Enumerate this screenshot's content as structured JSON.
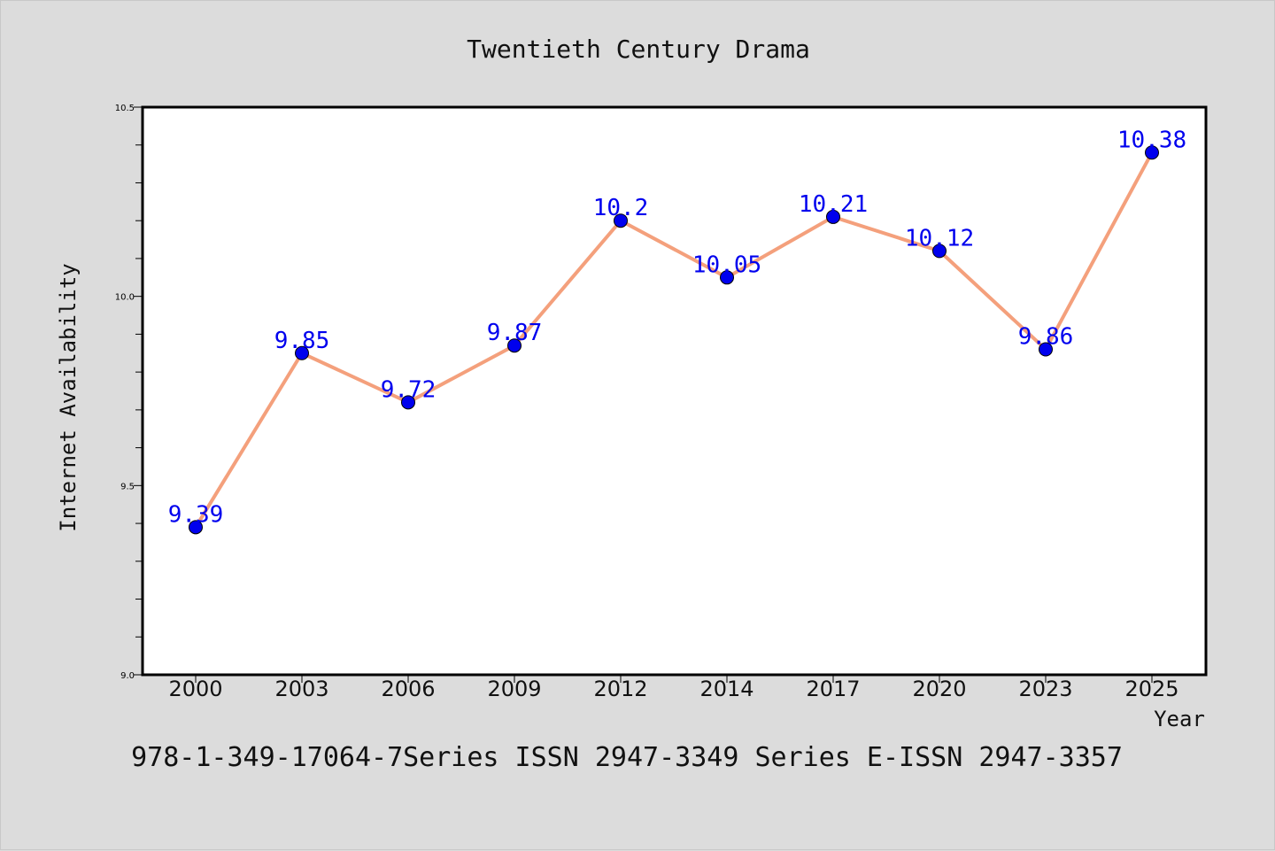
{
  "chart_data": {
    "type": "line",
    "title": "Twentieth Century Drama",
    "xlabel": "Year",
    "ylabel": "Internet Availability",
    "categories": [
      "2000",
      "2003",
      "2006",
      "2009",
      "2012",
      "2014",
      "2017",
      "2020",
      "2023",
      "2025"
    ],
    "series": [
      {
        "values": [
          9.39,
          9.85,
          9.72,
          9.87,
          10.2,
          10.05,
          10.21,
          10.12,
          9.86,
          10.38
        ],
        "labels": [
          "9.39",
          "9.85",
          "9.72",
          "9.87",
          "10.2",
          "10.05",
          "10.21",
          "10.12",
          "9.86",
          "10.38"
        ],
        "line_color": "#f4a07c",
        "marker_color": "#0000ee",
        "label_color": "#0000ee"
      }
    ],
    "ylim": [
      9.0,
      10.5
    ],
    "y_ticks": [
      "9.0",
      "9.5",
      "10.0",
      "10.5"
    ],
    "y_tick_values": [
      9.0,
      9.5,
      10.0,
      10.5
    ],
    "y_minor_step": 0.1,
    "grid": false,
    "legend": "none",
    "footer": "978-1-349-17064-7Series ISSN 2947-3349 Series E-ISSN 2947-3357",
    "background_color": "#dcdcdc",
    "plot_background_color": "#ffffff"
  }
}
